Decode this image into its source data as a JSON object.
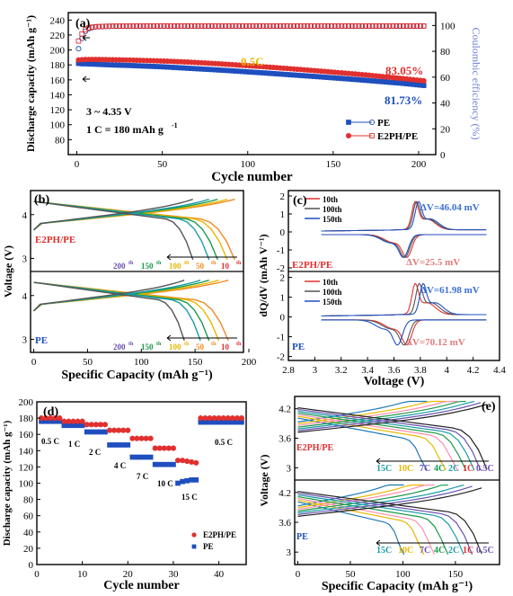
{
  "colors": {
    "pe": "#1f4fbf",
    "e2ph": "#e0302f",
    "ce": "#6f7fd8",
    "gold": "#e6b800",
    "green": "#1b9a4a",
    "teal": "#1a9ca6",
    "purple": "#6b4fb0",
    "orange": "#f08a24",
    "gray": "#555555",
    "ann_blue": "#3c6fd8",
    "ann_red": "#e07a7a"
  },
  "chart_data": [
    {
      "id": "a",
      "panel_label": "(a)",
      "type": "scatter",
      "xlabel": "Cycle number",
      "ylabel": "Discharge capacity (mAh g⁻¹)",
      "y2label": "Coulombic efficiency (%)",
      "xlim": [
        -5,
        210
      ],
      "ylim": [
        60,
        250
      ],
      "y2lim": [
        0,
        110
      ],
      "xticks": [
        0,
        50,
        100,
        150,
        200
      ],
      "yticks": [
        80,
        100,
        120,
        140,
        160,
        180,
        200,
        220,
        240
      ],
      "y2ticks": [
        0,
        20,
        40,
        60,
        80,
        100
      ],
      "notes": {
        "voltage": "3 ~ 4.35 V",
        "rate": "1 C = 180 mAh g",
        "rate_sup": "-1",
        "c_rate": "0.5C",
        "pe_retention": "81.73%",
        "e2ph_retention": "83.05%"
      },
      "legend": {
        "pe": "PE",
        "e2ph": "E2PH/PE"
      },
      "series": [
        {
          "name": "PE",
          "axis": "left",
          "x": [
            1,
            2,
            3,
            5,
            10,
            20,
            30,
            40,
            50,
            60,
            70,
            80,
            90,
            100,
            110,
            120,
            130,
            140,
            150,
            160,
            170,
            180,
            190,
            200,
            203
          ],
          "y": [
            182,
            182,
            181.5,
            181.5,
            181,
            180,
            179.3,
            178.4,
            177.5,
            176.2,
            174.9,
            173.6,
            172.2,
            170.7,
            169.2,
            167.6,
            166,
            164.4,
            162.7,
            161,
            159.2,
            157.3,
            155.5,
            153.2,
            152.5
          ]
        },
        {
          "name": "E2PH/PE",
          "axis": "left",
          "x": [
            1,
            2,
            3,
            5,
            10,
            20,
            30,
            40,
            50,
            60,
            70,
            80,
            90,
            100,
            110,
            120,
            130,
            140,
            150,
            160,
            170,
            180,
            190,
            200,
            203
          ],
          "y": [
            186.5,
            187,
            187,
            187.3,
            187.3,
            187,
            186.5,
            185.9,
            185.2,
            184.3,
            183.2,
            181.9,
            180.5,
            179,
            177.4,
            175.7,
            174,
            172.2,
            170.3,
            168.4,
            166.4,
            164.2,
            161.9,
            159.5,
            158.7
          ]
        },
        {
          "name": "PE CE",
          "axis": "right",
          "x": [
            1,
            2,
            3,
            4,
            5,
            6,
            8,
            10,
            15,
            20,
            40,
            60,
            80,
            100,
            120,
            140,
            160,
            180,
            200,
            203
          ],
          "y": [
            82,
            86,
            90,
            93,
            95.5,
            97,
            98,
            98.8,
            99.2,
            99.4,
            99.5,
            99.5,
            99.5,
            99.5,
            99.5,
            99.5,
            99.5,
            99.5,
            99.5,
            99.5
          ]
        },
        {
          "name": "E2PH/PE CE",
          "axis": "right",
          "x": [
            1,
            2,
            3,
            4,
            5,
            6,
            8,
            10,
            15,
            20,
            40,
            60,
            80,
            100,
            120,
            140,
            160,
            180,
            200,
            203
          ],
          "y": [
            88,
            91,
            93.5,
            95.5,
            96.8,
            97.8,
            98.5,
            99,
            99.3,
            99.5,
            99.6,
            99.6,
            99.6,
            99.6,
            99.6,
            99.6,
            99.6,
            99.6,
            99.6,
            99.6
          ]
        }
      ]
    },
    {
      "id": "b",
      "panel_label": "(b)",
      "type": "line",
      "xlabel": "Specific Capacity (mAh g⁻¹)",
      "ylabel": "Voltage (V)",
      "xlim": [
        -3,
        195
      ],
      "xticks": [
        0,
        50,
        100,
        150,
        200
      ],
      "ylim": [
        2.7,
        4.55
      ],
      "yticks": [
        3,
        4
      ],
      "subplots": [
        {
          "label": "E2PH/PE",
          "caps": [
            187,
            180,
            171,
            163,
            148
          ],
          "cycles": [
            "10",
            "50",
            "100",
            "150",
            "200"
          ],
          "cycle_suffix": "th"
        },
        {
          "label": "PE",
          "caps": [
            181,
            172,
            163,
            155,
            140
          ],
          "cycles": [
            "10",
            "50",
            "100",
            "150",
            "200"
          ],
          "cycle_suffix": "th"
        }
      ]
    },
    {
      "id": "c",
      "panel_label": "(c)",
      "type": "line",
      "xlabel": "Voltage (V)",
      "ylabel": "dQ/dV (mAh V⁻¹)",
      "xlim": [
        2.8,
        4.4
      ],
      "xticks": [
        2.8,
        3.0,
        3.2,
        3.4,
        3.6,
        3.8,
        4.0,
        4.2,
        4.4
      ],
      "ylim": [
        -2.2,
        2.3
      ],
      "yticks": [
        -2,
        -1,
        0,
        1,
        2
      ],
      "subplots": [
        {
          "label": "E2PH/PE",
          "legend": [
            "10th",
            "100th",
            "150th"
          ],
          "dv_charge": "ΔV=46.04 mV",
          "dv_discharge": "ΔV=25.5 mV",
          "charge_peaks": [
            3.76,
            3.77,
            3.785
          ],
          "discharge_peaks": [
            3.7,
            3.685,
            3.675
          ]
        },
        {
          "label": "PE",
          "legend": [
            "10th",
            "100th",
            "150th"
          ],
          "dv_charge": "ΔV=61.98 mV",
          "dv_discharge": "ΔV=70.12 mV",
          "charge_peaks": [
            3.76,
            3.79,
            3.82
          ],
          "discharge_peaks": [
            3.7,
            3.68,
            3.63
          ]
        }
      ]
    },
    {
      "id": "d",
      "panel_label": "(d)",
      "type": "scatter",
      "xlabel": "Cycle number",
      "ylabel": "Discharge capacity (mAh g⁻¹)",
      "xlim": [
        0,
        46
      ],
      "ylim": [
        0,
        200
      ],
      "xticks": [
        0,
        10,
        20,
        30,
        40
      ],
      "yticks": [
        0,
        20,
        40,
        60,
        80,
        100,
        120,
        140,
        160,
        180,
        200
      ],
      "rate_labels": [
        "0.5 C",
        "1 C",
        "2 C",
        "4 C",
        "7 C",
        "10 C",
        "15 C",
        "0.5 C"
      ],
      "series": [
        {
          "name": "E2PH/PE",
          "x": [
            1,
            2,
            3,
            4,
            5,
            6,
            7,
            8,
            9,
            10,
            11,
            12,
            13,
            14,
            15,
            16,
            17,
            18,
            19,
            20,
            21,
            22,
            23,
            24,
            25,
            26,
            27,
            28,
            29,
            30,
            31,
            32,
            33,
            34,
            35,
            36,
            37,
            38,
            39,
            40,
            41,
            42,
            43,
            44,
            45
          ],
          "y": [
            180,
            180,
            180,
            180,
            180,
            176,
            176,
            176,
            176,
            176,
            172,
            172,
            172,
            172,
            172,
            165,
            165,
            165,
            165,
            165,
            155,
            155,
            155,
            155,
            155,
            143,
            143,
            143,
            143,
            143,
            128,
            128,
            127,
            126,
            125,
            180,
            180,
            180,
            180,
            180,
            180,
            180,
            180,
            180,
            180
          ]
        },
        {
          "name": "PE",
          "x": [
            1,
            2,
            3,
            4,
            5,
            6,
            7,
            8,
            9,
            10,
            11,
            12,
            13,
            14,
            15,
            16,
            17,
            18,
            19,
            20,
            21,
            22,
            23,
            24,
            25,
            26,
            27,
            28,
            29,
            30,
            31,
            32,
            33,
            34,
            35,
            36,
            37,
            38,
            39,
            40,
            41,
            42,
            43,
            44,
            45
          ],
          "y": [
            176,
            176,
            176,
            176,
            176,
            171,
            171,
            171,
            171,
            171,
            163,
            163,
            163,
            163,
            163,
            147,
            147,
            147,
            147,
            147,
            132,
            132,
            132,
            132,
            132,
            123,
            123,
            123,
            123,
            123,
            100,
            102,
            103,
            104,
            104,
            175,
            175,
            175,
            175,
            175,
            175,
            175,
            175,
            175,
            175
          ]
        }
      ]
    },
    {
      "id": "e",
      "panel_label": "(e)",
      "type": "line",
      "xlabel": "Specific Capacity (mAh g⁻¹)",
      "ylabel": "Voltage (V)",
      "xlim": [
        -3,
        192
      ],
      "xticks": [
        0,
        50,
        100,
        150
      ],
      "ylim": [
        2.75,
        4.45
      ],
      "yticks": [
        3.0,
        3.6,
        4.2
      ],
      "subplots": [
        {
          "label": "E2PH/PE",
          "rates": [
            "15C",
            "10C",
            "7C",
            "4C",
            "2C",
            "1C",
            "0.5C"
          ],
          "caps": [
            123,
            141,
            152,
            160,
            168,
            174,
            180
          ]
        },
        {
          "label": "PE",
          "rates": [
            "15C",
            "10C",
            "7C",
            "4C",
            "2C",
            "1C",
            "0.5C"
          ],
          "caps": [
            101,
            120,
            130,
            143,
            158,
            166,
            175
          ]
        }
      ]
    }
  ]
}
